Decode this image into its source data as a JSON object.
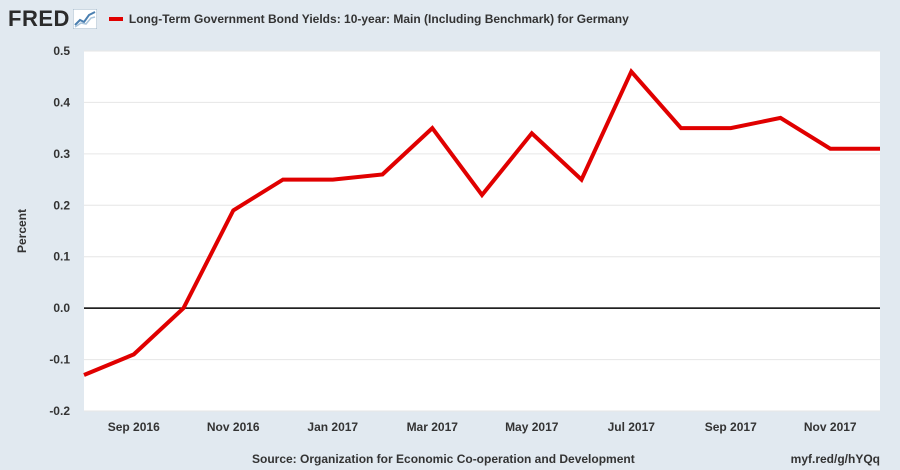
{
  "brand": {
    "logo_text": "FRED",
    "logo_icon": "line-chart-icon"
  },
  "colors": {
    "line": "#e00000",
    "background": "#e1e9f0",
    "plot_bg": "#ffffff",
    "zero_line": "#000000",
    "grid": "#e6e6e6"
  },
  "chart_data": {
    "type": "line",
    "title": "",
    "xlabel": "",
    "ylabel": "Percent",
    "ylim": [
      -0.2,
      0.5
    ],
    "yticks": [
      "0.5",
      "0.4",
      "0.3",
      "0.2",
      "0.1",
      "0.0",
      "-0.1",
      "-0.2"
    ],
    "ytick_values": [
      0.5,
      0.4,
      0.3,
      0.2,
      0.1,
      0.0,
      -0.1,
      -0.2
    ],
    "x": [
      "2016-08",
      "2016-09",
      "2016-10",
      "2016-11",
      "2016-12",
      "2017-01",
      "2017-02",
      "2017-03",
      "2017-04",
      "2017-05",
      "2017-06",
      "2017-07",
      "2017-08",
      "2017-09",
      "2017-10",
      "2017-11",
      "2017-12"
    ],
    "xticks": [
      {
        "label": "Sep 2016",
        "x": "2016-09"
      },
      {
        "label": "Nov 2016",
        "x": "2016-11"
      },
      {
        "label": "Jan 2017",
        "x": "2017-01"
      },
      {
        "label": "Mar 2017",
        "x": "2017-03"
      },
      {
        "label": "May 2017",
        "x": "2017-05"
      },
      {
        "label": "Jul 2017",
        "x": "2017-07"
      },
      {
        "label": "Sep 2017",
        "x": "2017-09"
      },
      {
        "label": "Nov 2017",
        "x": "2017-11"
      }
    ],
    "grid": true,
    "legend": "top-left",
    "series": [
      {
        "name": "Long-Term Government Bond Yields: 10-year: Main (Including Benchmark) for Germany",
        "values": [
          -0.13,
          -0.09,
          0.0,
          0.19,
          0.25,
          0.25,
          0.26,
          0.35,
          0.22,
          0.34,
          0.25,
          0.46,
          0.35,
          0.35,
          0.37,
          0.31,
          0.31
        ]
      }
    ]
  },
  "footer": {
    "source": "Source: Organization for Economic Co-operation and Development",
    "short_url": "myf.red/g/hYQq"
  }
}
